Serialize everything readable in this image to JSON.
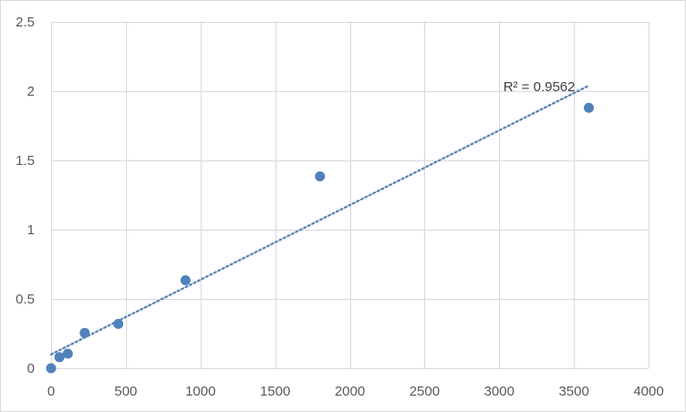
{
  "chart_data": {
    "type": "scatter",
    "title": "",
    "xlabel": "",
    "ylabel": "",
    "xlim": [
      0,
      4000
    ],
    "ylim": [
      0,
      2.5
    ],
    "x_ticks": [
      0,
      500,
      1000,
      1500,
      2000,
      2500,
      3000,
      3500,
      4000
    ],
    "y_ticks": [
      0,
      0.5,
      1,
      1.5,
      2,
      2.5
    ],
    "x_tick_labels": [
      "0",
      "500",
      "1000",
      "1500",
      "2000",
      "2500",
      "3000",
      "3500",
      "4000"
    ],
    "y_tick_labels": [
      "0",
      "0.5",
      "1",
      "1.5",
      "2",
      "2.5"
    ],
    "grid": true,
    "legend": "none",
    "series": [
      {
        "color": "#4f81bd",
        "points": [
          {
            "x": 0,
            "y": 0.0
          },
          {
            "x": 56,
            "y": 0.08
          },
          {
            "x": 112,
            "y": 0.105
          },
          {
            "x": 225,
            "y": 0.255
          },
          {
            "x": 450,
            "y": 0.32
          },
          {
            "x": 900,
            "y": 0.635
          },
          {
            "x": 1800,
            "y": 1.385
          },
          {
            "x": 3600,
            "y": 1.88
          }
        ]
      }
    ],
    "trendline": {
      "type": "linear",
      "style": "dotted",
      "color": "#4f81bd",
      "x_range": [
        0,
        3600
      ],
      "y_range": [
        0.1,
        2.04
      ],
      "label": "R² = 0.9562"
    },
    "colors": {
      "gridline": "#d9d9d9",
      "tick_text": "#595959",
      "point": "#4f81bd"
    }
  }
}
